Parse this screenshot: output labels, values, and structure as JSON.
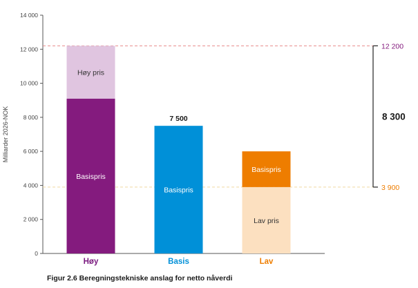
{
  "chart_data": {
    "type": "bar",
    "stacked": true,
    "ylabel": "Milliarder 2026-NOK",
    "ylim": [
      0,
      14000
    ],
    "yticks": [
      0,
      2000,
      4000,
      6000,
      8000,
      10000,
      12000,
      14000
    ],
    "ytick_labels": [
      "0",
      "2 000",
      "4 000",
      "6 000",
      "8 000",
      "10 000",
      "12 000",
      "14 000"
    ],
    "grid": false,
    "categories": [
      {
        "name": "Høy",
        "color": "#7b1c80",
        "segments": [
          {
            "label": "Basispris",
            "value": 9100,
            "color": "#841b7e",
            "text_color": "#ffffff"
          },
          {
            "label": "Høy pris",
            "value": 3100,
            "color": "#e0c5e0",
            "text_color": "#333333"
          }
        ]
      },
      {
        "name": "Basis",
        "color": "#0090d8",
        "total_label": "7 500",
        "segments": [
          {
            "label": "Basispris",
            "value": 7500,
            "color": "#0090d8",
            "text_color": "#ffffff"
          }
        ]
      },
      {
        "name": "Lav",
        "color": "#ee7d00",
        "segments": [
          {
            "label": "Lav pris",
            "value": 3900,
            "color": "#fce0c0",
            "text_color": "#333333"
          },
          {
            "label": "Basispris",
            "value": 2100,
            "color": "#ee7d00",
            "text_color": "#ffffff"
          }
        ]
      }
    ],
    "reference_lines": [
      {
        "value": 12200,
        "label": "12 200",
        "color": "#841b7e",
        "line_color": "#e88a8a"
      },
      {
        "value": 3900,
        "label": "3 900",
        "color": "#ee7d00",
        "line_color": "#f0d9a0"
      }
    ],
    "range_annotation": {
      "label": "8 300"
    },
    "caption": "Figur 2.6 Beregningstekniske anslag for netto nåverdi"
  }
}
